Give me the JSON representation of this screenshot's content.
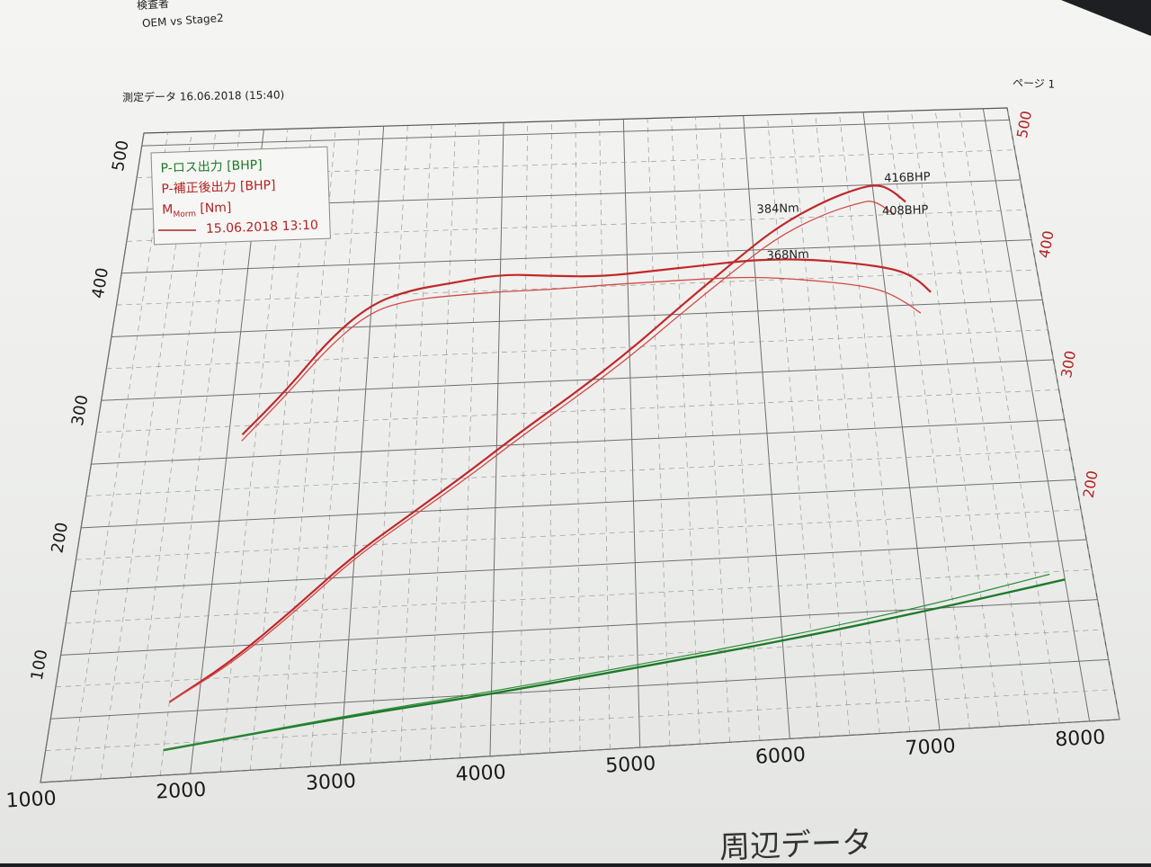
{
  "header": {
    "inspector_label": "検査者",
    "test_name": "OEM vs Stage2",
    "measurement_label": "測定データ 16.06.2018 (15:40)",
    "page_label": "ページ 1"
  },
  "footer": {
    "section_title": "周辺データ"
  },
  "chart_data": {
    "type": "line",
    "x_ticks": [
      1000,
      2000,
      3000,
      4000,
      5000,
      6000,
      7000,
      8000
    ],
    "left_axis": {
      "ylim": [
        0,
        500
      ],
      "ticks": [
        100,
        200,
        300,
        400,
        500
      ]
    },
    "right_axis": {
      "ylim": [
        0,
        500
      ],
      "ticks": [
        200,
        300,
        400,
        500
      ],
      "color": "#b22222"
    },
    "legend": {
      "position": "top-left",
      "entries": [
        {
          "text": "P-ロス出力 [BHP]",
          "color": "#1e7a2a"
        },
        {
          "text": "P-補正後出力 [BHP]",
          "color": "#b22222"
        },
        {
          "text": "M",
          "sub": "Morm",
          "suffix": " [Nm]",
          "color": "#b22222"
        },
        {
          "text": "15.06.2018 13:10",
          "color": "#b22222",
          "line": true
        }
      ]
    },
    "annotations": [
      {
        "text": "416BHP",
        "x": 7100,
        "y": 452
      },
      {
        "text": "408BHP",
        "x": 7050,
        "y": 425
      },
      {
        "text": "384Nm",
        "x": 6050,
        "y": 430
      },
      {
        "text": "368Nm",
        "x": 6100,
        "y": 392
      }
    ],
    "series": [
      {
        "color": "#c0282a",
        "width": 2.2,
        "points": [
          [
            1800,
            58
          ],
          [
            2200,
            88
          ],
          [
            2600,
            127
          ],
          [
            3000,
            168
          ],
          [
            3400,
            199
          ],
          [
            3800,
            230
          ],
          [
            4200,
            262
          ],
          [
            4600,
            291
          ],
          [
            5000,
            322
          ],
          [
            5400,
            356
          ],
          [
            5800,
            388
          ],
          [
            6200,
            418
          ],
          [
            6600,
            438
          ],
          [
            6900,
            448
          ],
          [
            7050,
            450
          ],
          [
            7150,
            445
          ],
          [
            7250,
            435
          ]
        ]
      },
      {
        "color": "#d24a4a",
        "width": 1.3,
        "points": [
          [
            1800,
            58
          ],
          [
            2200,
            86
          ],
          [
            2600,
            124
          ],
          [
            3000,
            165
          ],
          [
            3400,
            196
          ],
          [
            3800,
            226
          ],
          [
            4200,
            258
          ],
          [
            4600,
            287
          ],
          [
            5000,
            317
          ],
          [
            5400,
            350
          ],
          [
            5800,
            381
          ],
          [
            6200,
            410
          ],
          [
            6600,
            428
          ],
          [
            6900,
            436
          ],
          [
            7000,
            437
          ],
          [
            7150,
            425
          ]
        ]
      },
      {
        "color": "#c0282a",
        "width": 2.2,
        "points": [
          [
            2100,
            268
          ],
          [
            2400,
            302
          ],
          [
            2700,
            342
          ],
          [
            3000,
            368
          ],
          [
            3300,
            378
          ],
          [
            3600,
            382
          ],
          [
            4000,
            388
          ],
          [
            4400,
            385
          ],
          [
            4800,
            383
          ],
          [
            5200,
            386
          ],
          [
            5600,
            389
          ],
          [
            6000,
            392
          ],
          [
            6400,
            391
          ],
          [
            6800,
            386
          ],
          [
            7100,
            380
          ],
          [
            7250,
            372
          ],
          [
            7350,
            360
          ]
        ]
      },
      {
        "color": "#d24a4a",
        "width": 1.3,
        "points": [
          [
            2100,
            263
          ],
          [
            2400,
            298
          ],
          [
            2700,
            336
          ],
          [
            3000,
            362
          ],
          [
            3300,
            370
          ],
          [
            3600,
            372
          ],
          [
            4000,
            374
          ],
          [
            4400,
            374
          ],
          [
            4800,
            376
          ],
          [
            5200,
            377
          ],
          [
            5600,
            378
          ],
          [
            6000,
            378
          ],
          [
            6400,
            374
          ],
          [
            6800,
            368
          ],
          [
            7000,
            362
          ],
          [
            7150,
            352
          ],
          [
            7250,
            343
          ]
        ]
      },
      {
        "color": "#1e7a2a",
        "width": 2.4,
        "points": [
          [
            1800,
            20
          ],
          [
            3000,
            38
          ],
          [
            4000,
            50
          ],
          [
            5000,
            65
          ],
          [
            6000,
            80
          ],
          [
            7000,
            98
          ],
          [
            8000,
            118
          ]
        ]
      },
      {
        "color": "#2f8c3a",
        "width": 1.2,
        "points": [
          [
            1800,
            20
          ],
          [
            3000,
            39
          ],
          [
            4000,
            52
          ],
          [
            5000,
            67
          ],
          [
            6000,
            83
          ],
          [
            7000,
            102
          ],
          [
            7900,
            123
          ]
        ]
      }
    ]
  }
}
